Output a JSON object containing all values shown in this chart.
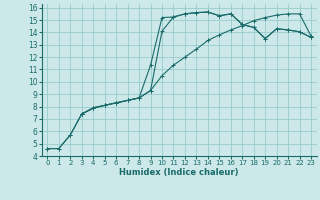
{
  "title": "",
  "xlabel": "Humidex (Indice chaleur)",
  "ylabel": "",
  "background_color": "#cce8e8",
  "grid_color": "#99cccc",
  "line_color": "#1a6b6b",
  "xlim": [
    -0.5,
    23.5
  ],
  "ylim": [
    4,
    16.3
  ],
  "xticks": [
    0,
    1,
    2,
    3,
    4,
    5,
    6,
    7,
    8,
    9,
    10,
    11,
    12,
    13,
    14,
    15,
    16,
    17,
    18,
    19,
    20,
    21,
    22,
    23
  ],
  "yticks": [
    4,
    5,
    6,
    7,
    8,
    9,
    10,
    11,
    12,
    13,
    14,
    15,
    16
  ],
  "series": [
    {
      "x": [
        0,
        1,
        2,
        3,
        4,
        5,
        6,
        7,
        8,
        9,
        10,
        11,
        12,
        13,
        14,
        15,
        16,
        17,
        18,
        19,
        20,
        21,
        22,
        23
      ],
      "y": [
        4.6,
        4.6,
        5.7,
        7.4,
        7.9,
        8.1,
        8.3,
        8.5,
        8.7,
        9.3,
        14.1,
        15.25,
        15.5,
        15.6,
        15.65,
        15.35,
        15.5,
        14.65,
        14.4,
        13.5,
        14.3,
        14.2,
        14.05,
        13.6
      ],
      "marker": "+"
    },
    {
      "x": [
        0,
        1,
        2,
        3,
        4,
        5,
        6,
        7,
        8,
        9,
        10,
        11,
        12,
        13,
        14,
        15,
        16,
        17,
        18,
        19,
        20,
        21,
        22,
        23
      ],
      "y": [
        4.6,
        4.6,
        5.7,
        7.4,
        7.9,
        8.1,
        8.3,
        8.5,
        8.7,
        11.35,
        15.2,
        15.25,
        15.5,
        15.6,
        15.65,
        15.35,
        15.5,
        14.65,
        14.4,
        13.5,
        14.3,
        14.2,
        14.05,
        13.6
      ],
      "marker": "+"
    },
    {
      "x": [
        3,
        4,
        5,
        6,
        7,
        8,
        9,
        10,
        11,
        12,
        13,
        14,
        15,
        16,
        17,
        18,
        19,
        20,
        21,
        22,
        23
      ],
      "y": [
        7.4,
        7.85,
        8.1,
        8.3,
        8.5,
        8.7,
        9.3,
        10.5,
        11.35,
        12.0,
        12.65,
        13.35,
        13.8,
        14.2,
        14.55,
        14.95,
        15.2,
        15.4,
        15.5,
        15.5,
        13.7
      ],
      "marker": "+"
    }
  ]
}
